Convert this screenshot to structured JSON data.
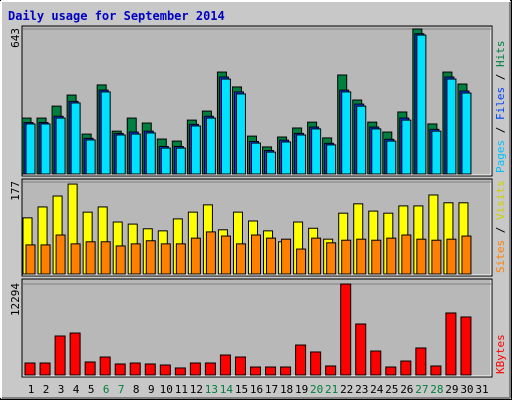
{
  "chart_data": [
    {
      "type": "bar",
      "title": "Daily usage for September 2014",
      "ylim": [
        0,
        643
      ],
      "yticks": [
        643
      ],
      "series": [
        {
          "name": "Hits",
          "color": "#008040",
          "values": [
            248,
            248,
            301,
            350,
            177,
            395,
            190,
            248,
            226,
            155,
            146,
            239,
            279,
            452,
            386,
            168,
            120,
            164,
            204,
            230,
            160,
            439,
            328,
            230,
            186,
            275,
            643,
            222,
            452,
            399,
            0
          ]
        },
        {
          "name": "Files",
          "color": "#0040ff",
          "values": [
            228,
            228,
            256,
            322,
            158,
            372,
            180,
            186,
            190,
            122,
            122,
            220,
            256,
            430,
            364,
            144,
            104,
            150,
            180,
            208,
            136,
            372,
            310,
            208,
            154,
            248,
            622,
            198,
            430,
            368,
            0
          ]
        },
        {
          "name": "Pages",
          "color": "#00e0ff",
          "values": [
            222,
            222,
            248,
            315,
            151,
            364,
            173,
            177,
            182,
            115,
            115,
            213,
            248,
            421,
            355,
            137,
            97,
            142,
            173,
            200,
            129,
            364,
            301,
            200,
            146,
            239,
            616,
            190,
            421,
            359,
            0
          ]
        }
      ]
    },
    {
      "type": "bar",
      "ylim": [
        0,
        177
      ],
      "yticks": [
        177
      ],
      "series": [
        {
          "name": "Visits",
          "color": "#ffff00",
          "values": [
            108,
            129,
            150,
            173,
            119,
            129,
            100,
            96,
            87,
            83,
            106,
            119,
            133,
            85,
            119,
            102,
            83,
            62,
            100,
            88,
            67,
            117,
            135,
            121,
            117,
            131,
            131,
            152,
            137,
            137,
            0
          ]
        },
        {
          "name": "Sites",
          "color": "#ff8000",
          "values": [
            56,
            56,
            75,
            58,
            62,
            62,
            54,
            58,
            64,
            58,
            58,
            69,
            81,
            73,
            58,
            75,
            69,
            67,
            48,
            69,
            60,
            65,
            67,
            65,
            69,
            75,
            67,
            65,
            67,
            73,
            0
          ]
        }
      ]
    },
    {
      "type": "bar",
      "ylim": [
        0,
        12294
      ],
      "yticks": [
        12294
      ],
      "series": [
        {
          "name": "KBytes",
          "color": "#ff0000",
          "values": [
            1620,
            1620,
            5270,
            5670,
            1760,
            2430,
            1490,
            1620,
            1490,
            1350,
            950,
            1620,
            1620,
            2700,
            2430,
            1080,
            1080,
            1080,
            4050,
            3110,
            1220,
            12294,
            6890,
            3240,
            1080,
            1890,
            3650,
            1220,
            8380,
            7840,
            0
          ]
        }
      ],
      "categories": [
        "1",
        "2",
        "3",
        "4",
        "5",
        "6",
        "7",
        "8",
        "9",
        "10",
        "11",
        "12",
        "13",
        "14",
        "15",
        "16",
        "17",
        "18",
        "19",
        "20",
        "21",
        "22",
        "23",
        "24",
        "25",
        "26",
        "27",
        "28",
        "29",
        "30",
        "31"
      ],
      "category_colors": [
        "#000000",
        "#000000",
        "#000000",
        "#000000",
        "#000000",
        "#008040",
        "#008040",
        "#000000",
        "#000000",
        "#000000",
        "#000000",
        "#000000",
        "#008040",
        "#008040",
        "#000000",
        "#000000",
        "#000000",
        "#000000",
        "#000000",
        "#008040",
        "#008040",
        "#000000",
        "#000000",
        "#000000",
        "#000000",
        "#000000",
        "#008040",
        "#008040",
        "#000000",
        "#000000",
        "#000000"
      ]
    }
  ]
}
